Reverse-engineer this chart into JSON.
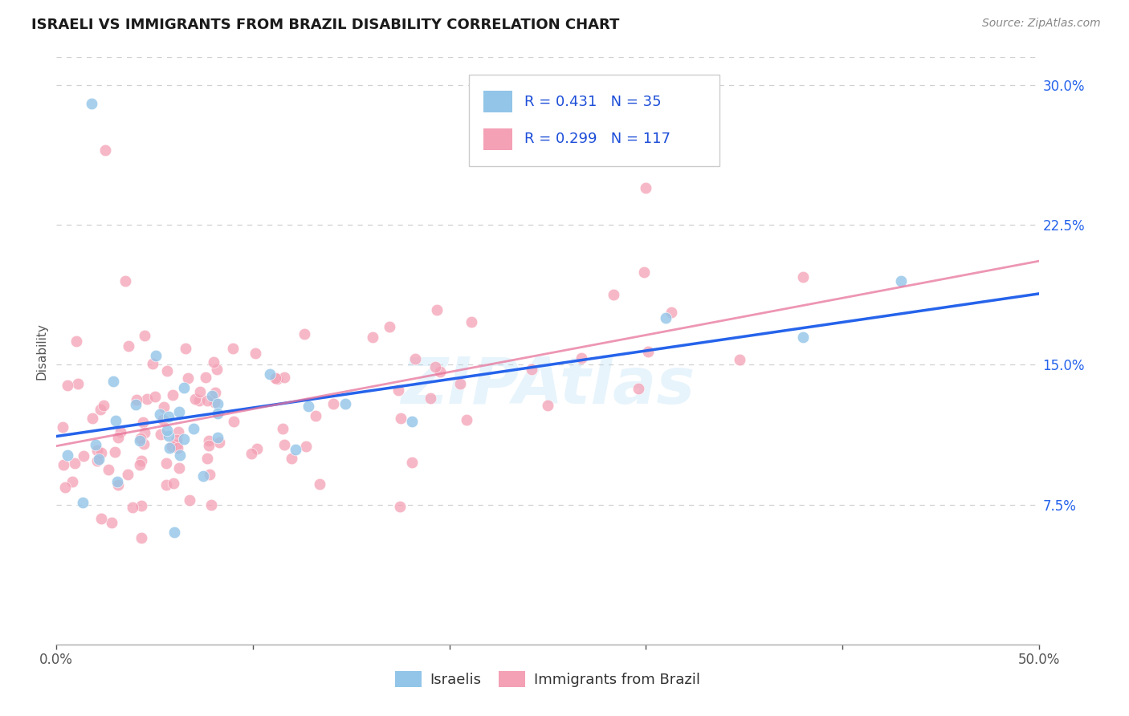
{
  "title": "ISRAELI VS IMMIGRANTS FROM BRAZIL DISABILITY CORRELATION CHART",
  "source": "Source: ZipAtlas.com",
  "ylabel": "Disability",
  "xlim": [
    0.0,
    0.5
  ],
  "ylim": [
    0.0,
    0.315
  ],
  "xtick_positions": [
    0.0,
    0.1,
    0.2,
    0.3,
    0.4,
    0.5
  ],
  "yticks_right": [
    0.075,
    0.15,
    0.225,
    0.3
  ],
  "ytick_labels_right": [
    "7.5%",
    "15.0%",
    "22.5%",
    "30.0%"
  ],
  "watermark": "ZIPAtlas",
  "legend_labels": [
    "Israelis",
    "Immigrants from Brazil"
  ],
  "israelis_color": "#92c5e8",
  "brazil_color": "#f4a0b5",
  "israelis_line_color": "#2563eb",
  "brazil_line_color": "#e8739a",
  "israelis_R": 0.431,
  "israelis_N": 35,
  "brazil_R": 0.299,
  "brazil_N": 117,
  "legend_text_color": "#1d4ed8",
  "background_color": "#ffffff",
  "grid_color": "#d0d0d0",
  "title_fontsize": 13,
  "source_fontsize": 10,
  "axis_label_fontsize": 11,
  "tick_fontsize": 12
}
